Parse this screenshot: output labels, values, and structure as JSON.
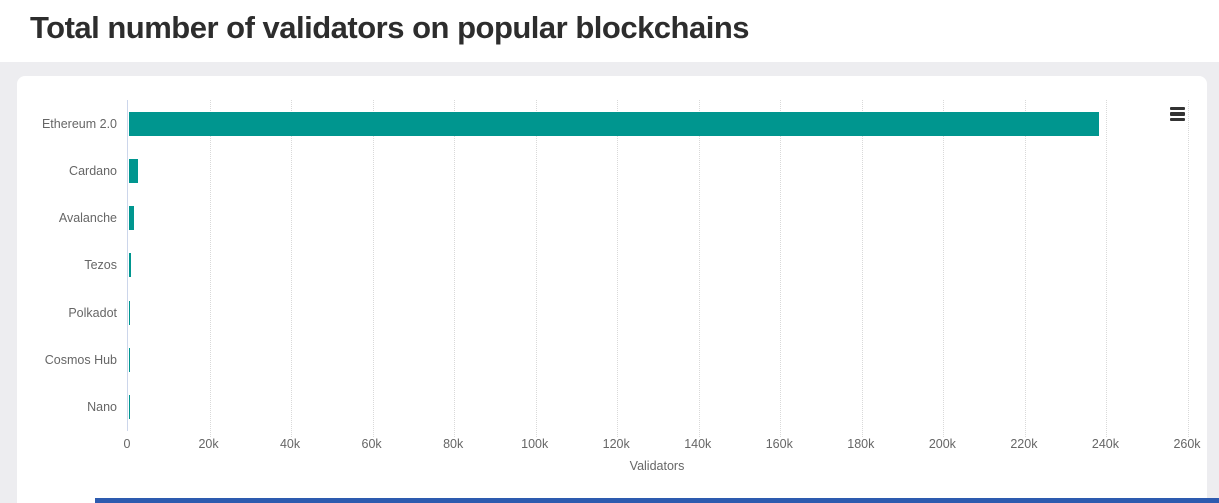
{
  "page": {
    "title": "Total number of validators on popular blockchains"
  },
  "chart": {
    "context_menu_label": "Chart context menu",
    "xaxis": {
      "title": "Validators"
    }
  },
  "chart_data": {
    "type": "bar",
    "orientation": "horizontal",
    "title": "Total number of validators on popular blockchains",
    "categories": [
      "Ethereum 2.0",
      "Cardano",
      "Avalanche",
      "Tezos",
      "Polkadot",
      "Cosmos Hub",
      "Nano"
    ],
    "values": [
      238000,
      2100,
      1150,
      450,
      200,
      150,
      100
    ],
    "xlabel": "Validators",
    "ylabel": "",
    "xlim": [
      0,
      260000
    ],
    "x_ticks": [
      0,
      20000,
      40000,
      60000,
      80000,
      100000,
      120000,
      140000,
      160000,
      180000,
      200000,
      220000,
      240000,
      260000
    ],
    "x_tick_labels": [
      "0",
      "20k",
      "40k",
      "60k",
      "80k",
      "100k",
      "120k",
      "140k",
      "160k",
      "180k",
      "200k",
      "220k",
      "240k",
      "260k"
    ],
    "grid": "dotted-vertical",
    "legend": "none",
    "bar_color": "#00968f",
    "axis_line_color": "#ccd6eb",
    "label_color": "#666666"
  }
}
